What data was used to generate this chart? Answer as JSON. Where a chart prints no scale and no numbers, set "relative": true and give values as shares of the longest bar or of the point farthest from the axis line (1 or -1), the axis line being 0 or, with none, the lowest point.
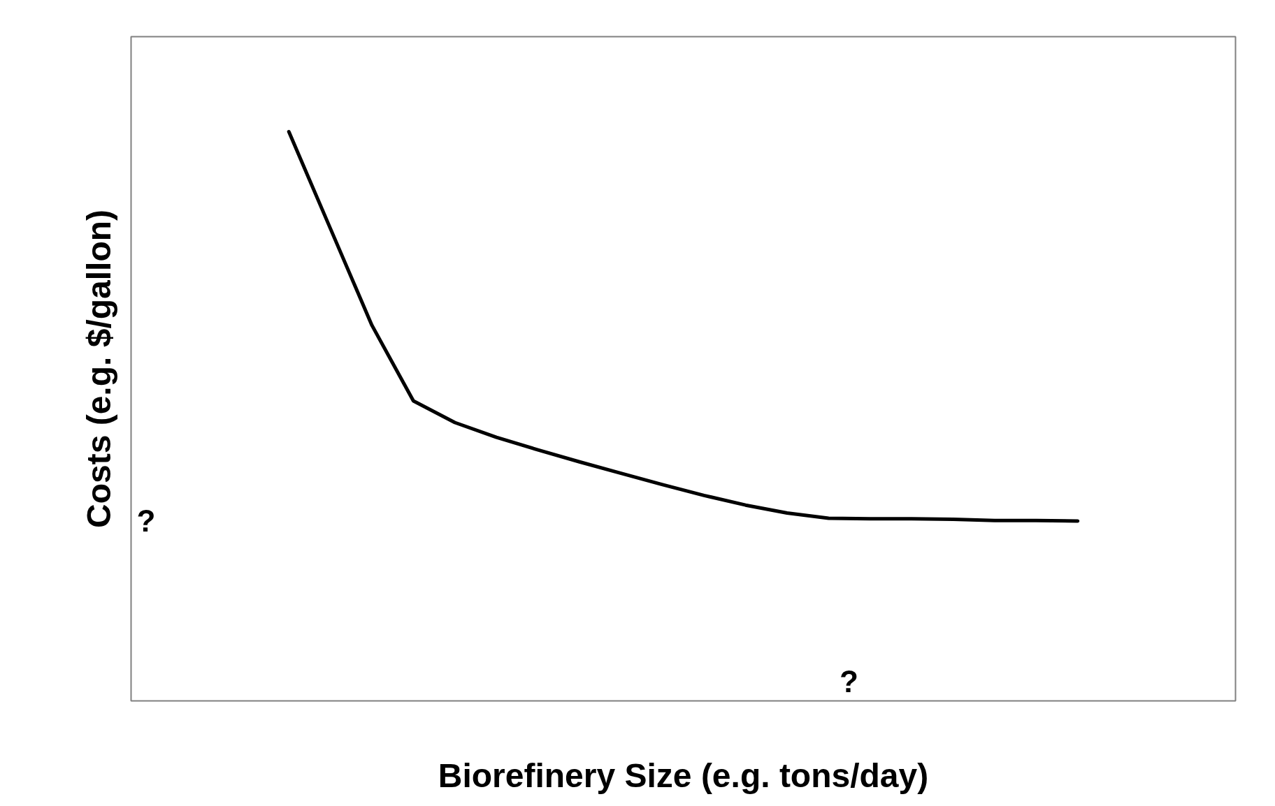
{
  "chart_data": {
    "type": "line",
    "relative": true,
    "xlabel": "Biorefinery Size (e.g. tons/day)",
    "ylabel": "Costs (e.g. $/gallon)",
    "categories": [
      null,
      null,
      null,
      null,
      null,
      null,
      null,
      null,
      null,
      null,
      null,
      null,
      null,
      null,
      null,
      null,
      null,
      null,
      null,
      null
    ],
    "series": [
      {
        "color": "#000000",
        "values": [
          1.0,
          0.83,
          0.66,
          0.527,
          0.489,
          0.463,
          0.441,
          0.42,
          0.4,
          0.38,
          0.361,
          0.344,
          0.33,
          0.321,
          0.32,
          0.32,
          0.319,
          0.317,
          0.317,
          0.316
        ]
      }
    ],
    "annotations": [
      "?",
      "?"
    ],
    "marker": "none",
    "line_style": "solid"
  }
}
